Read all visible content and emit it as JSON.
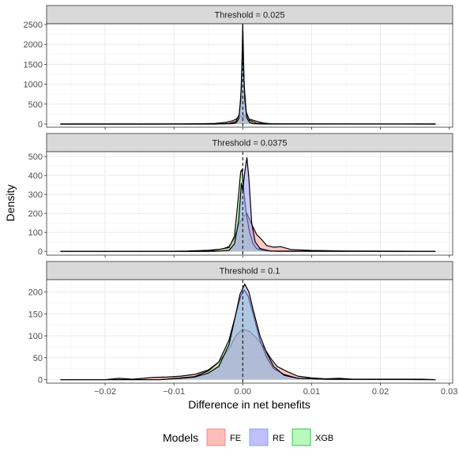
{
  "chart_data": {
    "type": "density",
    "xlabel": "Difference in net benefits",
    "ylabel": "Density",
    "xlim": [
      -0.0285,
      0.0305
    ],
    "x_ticks": [
      -0.02,
      -0.01,
      0.0,
      0.01,
      0.02,
      0.03
    ],
    "x_tick_labels": [
      "−0.02",
      "−0.01",
      "0.00",
      "0.01",
      "0.02",
      "0.03"
    ],
    "reference_line_x": 0,
    "grid": true,
    "legend": {
      "title": "Models",
      "position": "bottom",
      "entries": [
        {
          "name": "FE",
          "fill": "#ff9a94",
          "stroke": "#f8766d"
        },
        {
          "name": "RE",
          "fill": "#9f9cf7",
          "stroke": "#619cff"
        },
        {
          "name": "XGB",
          "fill": "#97f597",
          "stroke": "#00ba38"
        }
      ]
    },
    "panels": [
      {
        "strip": "Threshold = 0.025",
        "ylim": [
          -80,
          2520
        ],
        "y_ticks": [
          0,
          500,
          1000,
          1500,
          2000,
          2500
        ],
        "series": [
          {
            "name": "FE",
            "points": [
              [
                -0.0265,
                0
              ],
              [
                -0.012,
                0
              ],
              [
                -0.009,
                3
              ],
              [
                -0.006,
                8
              ],
              [
                -0.004,
                15
              ],
              [
                -0.0025,
                40
              ],
              [
                -0.0015,
                80
              ],
              [
                -0.001,
                120
              ],
              [
                -0.0006,
                180
              ],
              [
                -0.0003,
                200
              ],
              [
                0.0,
                160
              ],
              [
                0.0003,
                220
              ],
              [
                0.0006,
                180
              ],
              [
                0.001,
                120
              ],
              [
                0.0016,
                90
              ],
              [
                0.0022,
                60
              ],
              [
                0.003,
                25
              ],
              [
                0.004,
                8
              ],
              [
                0.006,
                3
              ],
              [
                0.01,
                1
              ],
              [
                0.028,
                0
              ]
            ]
          },
          {
            "name": "RE",
            "points": [
              [
                -0.0265,
                0
              ],
              [
                -0.004,
                0
              ],
              [
                -0.0015,
                10
              ],
              [
                -0.001,
                25
              ],
              [
                -0.0006,
                120
              ],
              [
                -0.0003,
                600
              ],
              [
                -0.0001,
                1600
              ],
              [
                0.0,
                1850
              ],
              [
                0.0001,
                1500
              ],
              [
                0.0003,
                600
              ],
              [
                0.0006,
                150
              ],
              [
                0.001,
                40
              ],
              [
                0.0015,
                10
              ],
              [
                0.003,
                0
              ],
              [
                0.028,
                0
              ]
            ]
          },
          {
            "name": "XGB",
            "points": [
              [
                -0.0265,
                0
              ],
              [
                -0.004,
                0
              ],
              [
                -0.002,
                15
              ],
              [
                -0.001,
                60
              ],
              [
                -0.0005,
                250
              ],
              [
                -0.0002,
                900
              ],
              [
                0.0,
                2500
              ],
              [
                0.0002,
                1000
              ],
              [
                0.0005,
                300
              ],
              [
                0.001,
                90
              ],
              [
                0.002,
                20
              ],
              [
                0.004,
                3
              ],
              [
                0.028,
                0
              ]
            ]
          }
        ]
      },
      {
        "strip": "Threshold = 0.0375",
        "ylim": [
          -20,
          525
        ],
        "y_ticks": [
          0,
          100,
          200,
          300,
          400,
          500
        ],
        "series": [
          {
            "name": "FE",
            "points": [
              [
                -0.0265,
                0
              ],
              [
                -0.012,
                0
              ],
              [
                -0.008,
                2
              ],
              [
                -0.005,
                6
              ],
              [
                -0.003,
                12
              ],
              [
                -0.002,
                25
              ],
              [
                -0.0012,
                70
              ],
              [
                -0.0006,
                140
              ],
              [
                0.0,
                180
              ],
              [
                0.0006,
                200
              ],
              [
                0.0012,
                150
              ],
              [
                0.002,
                90
              ],
              [
                0.0028,
                60
              ],
              [
                0.0035,
                30
              ],
              [
                0.0045,
                22
              ],
              [
                0.0055,
                25
              ],
              [
                0.007,
                10
              ],
              [
                0.01,
                5
              ],
              [
                0.015,
                2
              ],
              [
                0.028,
                0
              ]
            ]
          },
          {
            "name": "RE",
            "points": [
              [
                -0.0265,
                0
              ],
              [
                -0.004,
                0
              ],
              [
                -0.002,
                5
              ],
              [
                -0.0012,
                40
              ],
              [
                -0.0006,
                160
              ],
              [
                -0.0002,
                360
              ],
              [
                0.0,
                320
              ],
              [
                0.0003,
                420
              ],
              [
                0.0006,
                495
              ],
              [
                0.0009,
                380
              ],
              [
                0.0013,
                150
              ],
              [
                0.0018,
                50
              ],
              [
                0.0025,
                15
              ],
              [
                0.004,
                2
              ],
              [
                0.028,
                0
              ]
            ]
          },
          {
            "name": "XGB",
            "points": [
              [
                -0.0265,
                0
              ],
              [
                -0.005,
                0
              ],
              [
                -0.002,
                20
              ],
              [
                -0.0012,
                80
              ],
              [
                -0.0006,
                300
              ],
              [
                -0.0003,
                420
              ],
              [
                -0.0001,
                430
              ],
              [
                0.0002,
                300
              ],
              [
                0.0005,
                200
              ],
              [
                0.001,
                100
              ],
              [
                0.0015,
                40
              ],
              [
                0.002,
                15
              ],
              [
                0.003,
                4
              ],
              [
                0.005,
                0
              ],
              [
                0.028,
                0
              ]
            ]
          }
        ]
      },
      {
        "strip": "Threshold = 0.1",
        "ylim": [
          -8,
          228
        ],
        "y_ticks": [
          0,
          50,
          100,
          150,
          200
        ],
        "series": [
          {
            "name": "FE",
            "points": [
              [
                -0.0265,
                0
              ],
              [
                -0.02,
                0
              ],
              [
                -0.018,
                3
              ],
              [
                -0.016,
                1
              ],
              [
                -0.013,
                5
              ],
              [
                -0.011,
                6
              ],
              [
                -0.009,
                8
              ],
              [
                -0.007,
                12
              ],
              [
                -0.005,
                22
              ],
              [
                -0.0035,
                40
              ],
              [
                -0.002,
                70
              ],
              [
                -0.001,
                100
              ],
              [
                0.0,
                115
              ],
              [
                0.001,
                110
              ],
              [
                0.002,
                95
              ],
              [
                0.003,
                75
              ],
              [
                0.004,
                50
              ],
              [
                0.005,
                30
              ],
              [
                0.0065,
                18
              ],
              [
                0.008,
                8
              ],
              [
                0.01,
                4
              ],
              [
                0.012,
                2
              ],
              [
                0.014,
                3
              ],
              [
                0.016,
                1
              ],
              [
                0.02,
                1
              ],
              [
                0.026,
                1
              ],
              [
                0.028,
                0
              ]
            ]
          },
          {
            "name": "RE",
            "points": [
              [
                -0.0265,
                0
              ],
              [
                -0.012,
                0
              ],
              [
                -0.009,
                3
              ],
              [
                -0.007,
                6
              ],
              [
                -0.005,
                15
              ],
              [
                -0.0035,
                30
              ],
              [
                -0.002,
                80
              ],
              [
                -0.001,
                150
              ],
              [
                -0.0004,
                195
              ],
              [
                0.0003,
                218
              ],
              [
                0.0009,
                200
              ],
              [
                0.0015,
                160
              ],
              [
                0.0025,
                100
              ],
              [
                0.0035,
                60
              ],
              [
                0.0045,
                30
              ],
              [
                0.006,
                10
              ],
              [
                0.008,
                3
              ],
              [
                0.012,
                1
              ],
              [
                0.028,
                0
              ]
            ]
          },
          {
            "name": "XGB",
            "points": [
              [
                -0.0265,
                0
              ],
              [
                -0.012,
                0
              ],
              [
                -0.009,
                4
              ],
              [
                -0.007,
                7
              ],
              [
                -0.005,
                20
              ],
              [
                -0.0035,
                40
              ],
              [
                -0.002,
                90
              ],
              [
                -0.001,
                150
              ],
              [
                -0.0003,
                190
              ],
              [
                0.0002,
                205
              ],
              [
                0.0008,
                190
              ],
              [
                0.0015,
                150
              ],
              [
                0.0025,
                90
              ],
              [
                0.0035,
                50
              ],
              [
                0.0045,
                25
              ],
              [
                0.006,
                12
              ],
              [
                0.008,
                3
              ],
              [
                0.012,
                1
              ],
              [
                0.028,
                0
              ]
            ]
          }
        ]
      }
    ]
  }
}
